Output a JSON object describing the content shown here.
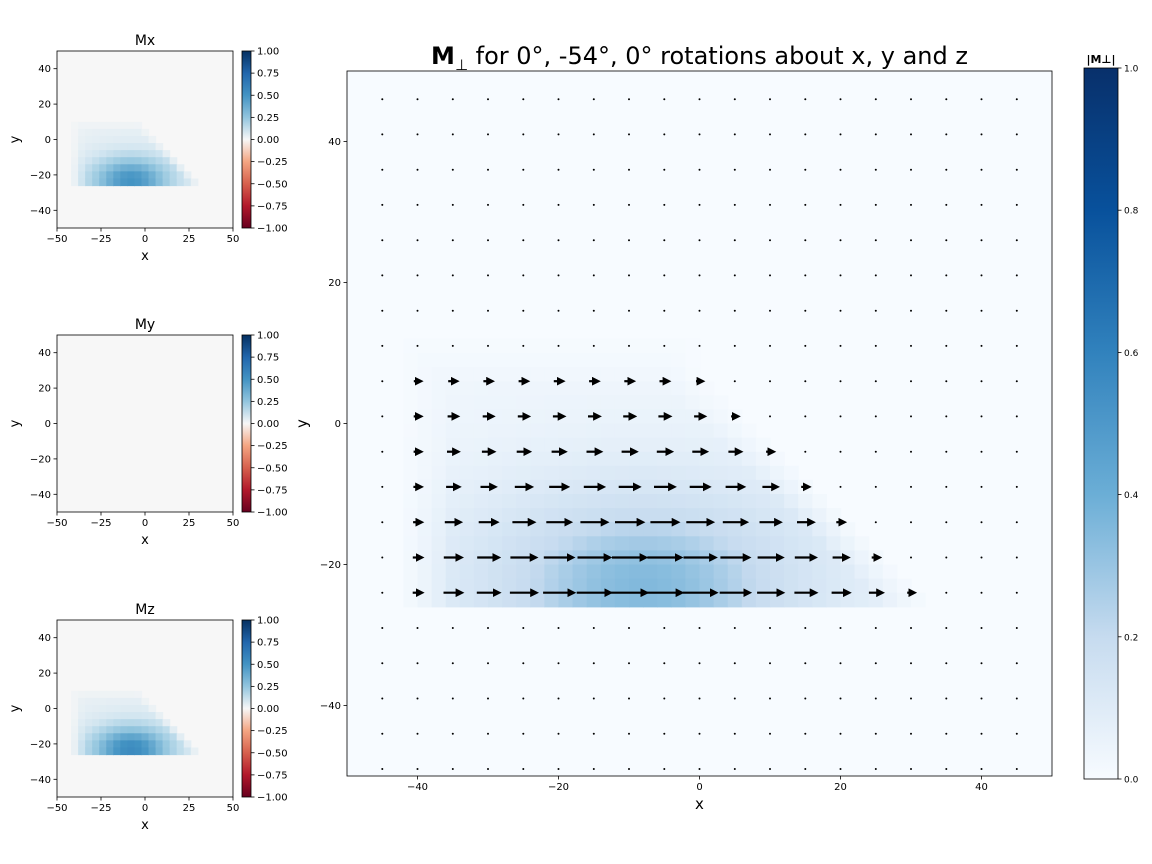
{
  "chart_data": [
    {
      "type": "heatmap",
      "title": "Mx",
      "xlabel": "x",
      "ylabel": "y",
      "xlim": [
        -50,
        50
      ],
      "ylim": [
        -50,
        50
      ],
      "xticks": [
        -50,
        -25,
        0,
        25,
        50
      ],
      "yticks": [
        -40,
        -20,
        0,
        20,
        40
      ],
      "colormap": "RdBu",
      "clim": [
        -1,
        1
      ],
      "colorbar_ticks": [
        "1.00",
        "0.75",
        "0.50",
        "0.25",
        "0.00",
        "-0.25",
        "-0.50",
        "-0.75",
        "-1.00"
      ],
      "field": {
        "shape": "trapezoid",
        "y_range": [
          -25,
          8
        ],
        "x_left_at_top": -40,
        "x_right_at_top": -3,
        "x_left_at_bottom": -40,
        "x_right_at_bottom": 30,
        "peak_value": 0.75,
        "peak_at": [
          -8,
          -23
        ]
      }
    },
    {
      "type": "heatmap",
      "title": "My",
      "xlabel": "x",
      "ylabel": "y",
      "xlim": [
        -50,
        50
      ],
      "ylim": [
        -50,
        50
      ],
      "xticks": [
        -50,
        -25,
        0,
        25,
        50
      ],
      "yticks": [
        -40,
        -20,
        0,
        20,
        40
      ],
      "colormap": "RdBu",
      "clim": [
        -1,
        1
      ],
      "colorbar_ticks": [
        "1.00",
        "0.75",
        "0.50",
        "0.25",
        "0.00",
        "-0.25",
        "-0.50",
        "-0.75",
        "-1.00"
      ],
      "field": {
        "shape": "uniform",
        "peak_value": 0
      }
    },
    {
      "type": "heatmap",
      "title": "Mz",
      "xlabel": "x",
      "ylabel": "y",
      "xlim": [
        -50,
        50
      ],
      "ylim": [
        -50,
        50
      ],
      "xticks": [
        -50,
        -25,
        0,
        25,
        50
      ],
      "yticks": [
        -40,
        -20,
        0,
        20,
        40
      ],
      "colormap": "RdBu",
      "clim": [
        -1,
        1
      ],
      "colorbar_ticks": [
        "1.00",
        "0.75",
        "0.50",
        "0.25",
        "0.00",
        "-0.25",
        "-0.50",
        "-0.75",
        "-1.00"
      ],
      "field": {
        "shape": "trapezoid",
        "y_range": [
          -25,
          8
        ],
        "x_left_at_top": -40,
        "x_right_at_top": -3,
        "x_left_at_bottom": -40,
        "x_right_at_bottom": 30,
        "peak_value": 0.8,
        "peak_at": [
          -8,
          -23
        ]
      }
    },
    {
      "type": "heatmap",
      "subtype": "quiver",
      "title_bold": "M",
      "title_sub": "⊥",
      "title_rest": " for 0°, -54°, 0° rotations about x, y and z",
      "xlabel": "x",
      "ylabel": "y",
      "xlim": [
        -50,
        50
      ],
      "ylim": [
        -50,
        50
      ],
      "xticks": [
        -40,
        -20,
        0,
        20,
        40
      ],
      "yticks": [
        -40,
        -20,
        0,
        20,
        40
      ],
      "colormap": "Blues",
      "clim": [
        0,
        1
      ],
      "colorbar_label": "|M⊥|",
      "colorbar_ticks": [
        "1.0",
        "0.8",
        "0.6",
        "0.4",
        "0.2",
        "0.0"
      ],
      "field": {
        "shape": "trapezoid",
        "y_range": [
          -25,
          8
        ],
        "x_left_at_top": -40,
        "x_right_at_top": -3,
        "x_left_at_bottom": -40,
        "x_right_at_bottom": 30,
        "peak_value": 0.55,
        "peak_at": [
          -8,
          -23
        ]
      },
      "arrow_grid": {
        "x_start": -45,
        "x_step": 5,
        "x_count": 19,
        "y_start": 46,
        "y_step": -5,
        "y_count": 20
      },
      "arrow_direction": "+x"
    }
  ]
}
